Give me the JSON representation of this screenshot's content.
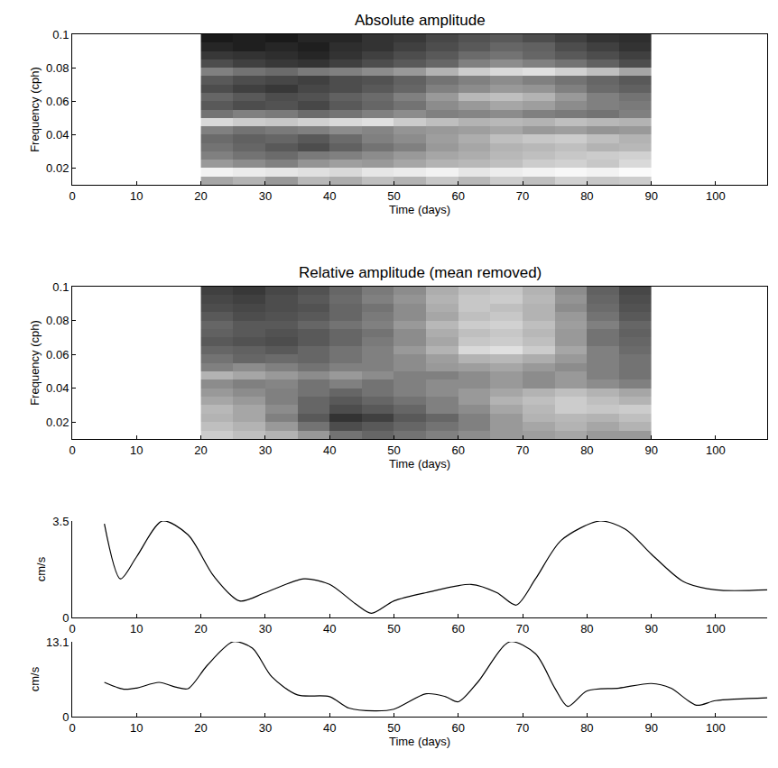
{
  "chart_data": [
    {
      "type": "heatmap",
      "title": "Absolute amplitude",
      "x_label": "Time (days)",
      "y_label": "Frequency (cph)",
      "xlim": [
        0,
        108
      ],
      "ylim": [
        0.01,
        0.1
      ],
      "xticks": [
        0,
        10,
        20,
        30,
        40,
        50,
        60,
        70,
        80,
        90,
        100
      ],
      "yticks": [
        0.02,
        0.04,
        0.06,
        0.08,
        0.1
      ],
      "x": [
        22.5,
        27.5,
        32.5,
        37.5,
        42.5,
        47.5,
        52.5,
        57.5,
        62.5,
        67.5,
        72.5,
        77.5,
        82.5,
        87.5
      ],
      "y": [
        0.0125,
        0.0175,
        0.0225,
        0.0275,
        0.0325,
        0.0375,
        0.0425,
        0.0475,
        0.0525,
        0.0575,
        0.0625,
        0.0675,
        0.0725,
        0.0775,
        0.0825,
        0.0875,
        0.0925,
        0.0975
      ],
      "zlim": [
        0,
        1
      ],
      "cells": [
        [
          0.65,
          0.7,
          0.6,
          0.72,
          0.68,
          0.75,
          0.7,
          0.78,
          0.72,
          0.8,
          0.75,
          0.82,
          0.78,
          0.8
        ],
        [
          0.95,
          0.92,
          0.9,
          0.88,
          0.85,
          0.9,
          0.92,
          0.95,
          0.9,
          0.93,
          0.95,
          0.97,
          0.95,
          0.98
        ],
        [
          0.6,
          0.55,
          0.5,
          0.58,
          0.62,
          0.6,
          0.65,
          0.7,
          0.72,
          0.75,
          0.8,
          0.82,
          0.78,
          0.85
        ],
        [
          0.5,
          0.45,
          0.42,
          0.48,
          0.5,
          0.55,
          0.6,
          0.65,
          0.68,
          0.72,
          0.75,
          0.78,
          0.8,
          0.82
        ],
        [
          0.45,
          0.4,
          0.35,
          0.3,
          0.38,
          0.45,
          0.5,
          0.6,
          0.65,
          0.7,
          0.72,
          0.75,
          0.7,
          0.72
        ],
        [
          0.42,
          0.38,
          0.4,
          0.35,
          0.42,
          0.5,
          0.55,
          0.62,
          0.68,
          0.75,
          0.78,
          0.8,
          0.75,
          0.7
        ],
        [
          0.5,
          0.45,
          0.48,
          0.5,
          0.55,
          0.52,
          0.58,
          0.6,
          0.62,
          0.65,
          0.6,
          0.62,
          0.58,
          0.6
        ],
        [
          0.85,
          0.8,
          0.78,
          0.82,
          0.85,
          0.88,
          0.8,
          0.75,
          0.7,
          0.72,
          0.7,
          0.75,
          0.72,
          0.7
        ],
        [
          0.45,
          0.5,
          0.48,
          0.42,
          0.45,
          0.5,
          0.55,
          0.5,
          0.52,
          0.55,
          0.5,
          0.48,
          0.45,
          0.5
        ],
        [
          0.35,
          0.3,
          0.32,
          0.28,
          0.35,
          0.4,
          0.45,
          0.55,
          0.6,
          0.65,
          0.62,
          0.55,
          0.5,
          0.48
        ],
        [
          0.4,
          0.35,
          0.3,
          0.32,
          0.38,
          0.42,
          0.5,
          0.6,
          0.72,
          0.75,
          0.7,
          0.6,
          0.5,
          0.45
        ],
        [
          0.3,
          0.25,
          0.22,
          0.28,
          0.3,
          0.35,
          0.4,
          0.5,
          0.55,
          0.6,
          0.58,
          0.5,
          0.42,
          0.38
        ],
        [
          0.35,
          0.3,
          0.28,
          0.25,
          0.3,
          0.32,
          0.38,
          0.45,
          0.5,
          0.55,
          0.5,
          0.45,
          0.4,
          0.35
        ],
        [
          0.5,
          0.45,
          0.42,
          0.48,
          0.5,
          0.55,
          0.6,
          0.7,
          0.8,
          0.85,
          0.88,
          0.82,
          0.75,
          0.65
        ],
        [
          0.3,
          0.25,
          0.22,
          0.2,
          0.25,
          0.3,
          0.35,
          0.4,
          0.5,
          0.55,
          0.5,
          0.45,
          0.38,
          0.3
        ],
        [
          0.22,
          0.2,
          0.18,
          0.15,
          0.2,
          0.25,
          0.3,
          0.35,
          0.42,
          0.45,
          0.4,
          0.35,
          0.3,
          0.25
        ],
        [
          0.15,
          0.12,
          0.15,
          0.12,
          0.18,
          0.2,
          0.25,
          0.3,
          0.35,
          0.4,
          0.38,
          0.3,
          0.25,
          0.2
        ],
        [
          0.1,
          0.12,
          0.1,
          0.15,
          0.15,
          0.2,
          0.22,
          0.28,
          0.32,
          0.35,
          0.3,
          0.25,
          0.2,
          0.18
        ]
      ]
    },
    {
      "type": "heatmap",
      "title": "Relative amplitude (mean removed)",
      "x_label": "Time (days)",
      "y_label": "Frequency (cph)",
      "xlim": [
        0,
        108
      ],
      "ylim": [
        0.01,
        0.1
      ],
      "xticks": [
        0,
        10,
        20,
        30,
        40,
        50,
        60,
        70,
        80,
        90,
        100
      ],
      "yticks": [
        0.02,
        0.04,
        0.06,
        0.08,
        0.1
      ],
      "x": [
        22.5,
        27.5,
        32.5,
        37.5,
        42.5,
        47.5,
        52.5,
        57.5,
        62.5,
        67.5,
        72.5,
        77.5,
        82.5,
        87.5
      ],
      "y": [
        0.0125,
        0.0175,
        0.0225,
        0.0275,
        0.0325,
        0.0375,
        0.0425,
        0.0475,
        0.0525,
        0.0575,
        0.0625,
        0.0675,
        0.0725,
        0.0775,
        0.0825,
        0.0875,
        0.0925,
        0.0975
      ],
      "zlim": [
        0,
        1
      ],
      "cells": [
        [
          0.8,
          0.75,
          0.7,
          0.6,
          0.45,
          0.4,
          0.45,
          0.5,
          0.55,
          0.6,
          0.62,
          0.65,
          0.6,
          0.6
        ],
        [
          0.75,
          0.7,
          0.6,
          0.45,
          0.3,
          0.35,
          0.4,
          0.45,
          0.5,
          0.6,
          0.65,
          0.7,
          0.65,
          0.7
        ],
        [
          0.7,
          0.65,
          0.5,
          0.35,
          0.2,
          0.25,
          0.35,
          0.4,
          0.5,
          0.6,
          0.7,
          0.72,
          0.7,
          0.75
        ],
        [
          0.72,
          0.65,
          0.55,
          0.4,
          0.3,
          0.35,
          0.4,
          0.5,
          0.55,
          0.65,
          0.72,
          0.8,
          0.78,
          0.8
        ],
        [
          0.65,
          0.6,
          0.5,
          0.4,
          0.35,
          0.4,
          0.45,
          0.5,
          0.6,
          0.7,
          0.75,
          0.8,
          0.75,
          0.7
        ],
        [
          0.6,
          0.55,
          0.5,
          0.45,
          0.4,
          0.45,
          0.5,
          0.55,
          0.6,
          0.65,
          0.7,
          0.75,
          0.7,
          0.65
        ],
        [
          0.55,
          0.5,
          0.52,
          0.45,
          0.5,
          0.45,
          0.5,
          0.55,
          0.55,
          0.6,
          0.55,
          0.6,
          0.55,
          0.5
        ],
        [
          0.7,
          0.65,
          0.6,
          0.55,
          0.6,
          0.55,
          0.5,
          0.5,
          0.55,
          0.6,
          0.55,
          0.6,
          0.5,
          0.45
        ],
        [
          0.5,
          0.55,
          0.5,
          0.45,
          0.5,
          0.5,
          0.55,
          0.6,
          0.62,
          0.65,
          0.6,
          0.55,
          0.5,
          0.45
        ],
        [
          0.45,
          0.4,
          0.42,
          0.4,
          0.45,
          0.5,
          0.55,
          0.62,
          0.7,
          0.72,
          0.68,
          0.6,
          0.5,
          0.45
        ],
        [
          0.4,
          0.38,
          0.35,
          0.4,
          0.45,
          0.5,
          0.6,
          0.7,
          0.85,
          0.88,
          0.8,
          0.65,
          0.5,
          0.42
        ],
        [
          0.35,
          0.32,
          0.3,
          0.35,
          0.4,
          0.48,
          0.55,
          0.65,
          0.78,
          0.8,
          0.75,
          0.6,
          0.45,
          0.4
        ],
        [
          0.38,
          0.35,
          0.32,
          0.35,
          0.4,
          0.45,
          0.55,
          0.68,
          0.75,
          0.78,
          0.72,
          0.6,
          0.45,
          0.38
        ],
        [
          0.4,
          0.35,
          0.35,
          0.4,
          0.45,
          0.5,
          0.6,
          0.72,
          0.8,
          0.82,
          0.75,
          0.62,
          0.5,
          0.4
        ],
        [
          0.35,
          0.3,
          0.32,
          0.35,
          0.4,
          0.48,
          0.55,
          0.65,
          0.75,
          0.78,
          0.7,
          0.6,
          0.45,
          0.35
        ],
        [
          0.3,
          0.28,
          0.3,
          0.32,
          0.4,
          0.45,
          0.55,
          0.68,
          0.78,
          0.75,
          0.7,
          0.55,
          0.42,
          0.32
        ],
        [
          0.28,
          0.25,
          0.3,
          0.35,
          0.42,
          0.5,
          0.58,
          0.7,
          0.78,
          0.8,
          0.72,
          0.58,
          0.4,
          0.3
        ],
        [
          0.25,
          0.22,
          0.28,
          0.32,
          0.4,
          0.48,
          0.55,
          0.68,
          0.75,
          0.78,
          0.7,
          0.55,
          0.38,
          0.28
        ]
      ]
    },
    {
      "type": "line",
      "y_label": "cm/s",
      "color": "#000000",
      "xlim": [
        0,
        108
      ],
      "ylim": [
        0,
        3.5
      ],
      "xticks": [
        0,
        10,
        20,
        30,
        40,
        50,
        60,
        70,
        80,
        90,
        100
      ],
      "yticks": [
        0,
        3.5
      ],
      "x": [
        5,
        7.5,
        10,
        14,
        18,
        22,
        26,
        30,
        36,
        40,
        44,
        46.5,
        50,
        55,
        62,
        66,
        69,
        72,
        76,
        82,
        86,
        90,
        95,
        100,
        108
      ],
      "values": [
        3.4,
        1.4,
        2.2,
        3.5,
        3.0,
        1.5,
        0.6,
        0.9,
        1.4,
        1.2,
        0.5,
        0.15,
        0.6,
        0.9,
        1.2,
        0.9,
        0.45,
        1.4,
        2.8,
        3.5,
        3.2,
        2.3,
        1.3,
        1.0,
        1.0
      ]
    },
    {
      "type": "line",
      "x_label": "Time (days)",
      "y_label": "cm/s",
      "color": "#000000",
      "xlim": [
        0,
        108
      ],
      "ylim": [
        0,
        13.1
      ],
      "xticks": [
        0,
        10,
        20,
        30,
        40,
        50,
        60,
        70,
        80,
        90,
        100
      ],
      "yticks": [
        0,
        13.1
      ],
      "x": [
        5,
        8,
        10,
        13.5,
        16,
        18,
        21,
        25,
        28,
        31,
        35,
        40,
        43,
        47,
        50,
        55,
        58,
        60,
        63,
        68,
        72,
        75,
        77,
        80,
        85,
        90,
        93,
        97,
        100,
        108
      ],
      "values": [
        6,
        4.8,
        5,
        6,
        5.2,
        4.9,
        9,
        13.1,
        12,
        7,
        3.8,
        3.5,
        1.5,
        1.0,
        1.3,
        4,
        3.5,
        2.6,
        6,
        13.1,
        11,
        5,
        1.8,
        4.5,
        5,
        5.8,
        5,
        2,
        2.8,
        3.3
      ]
    }
  ]
}
